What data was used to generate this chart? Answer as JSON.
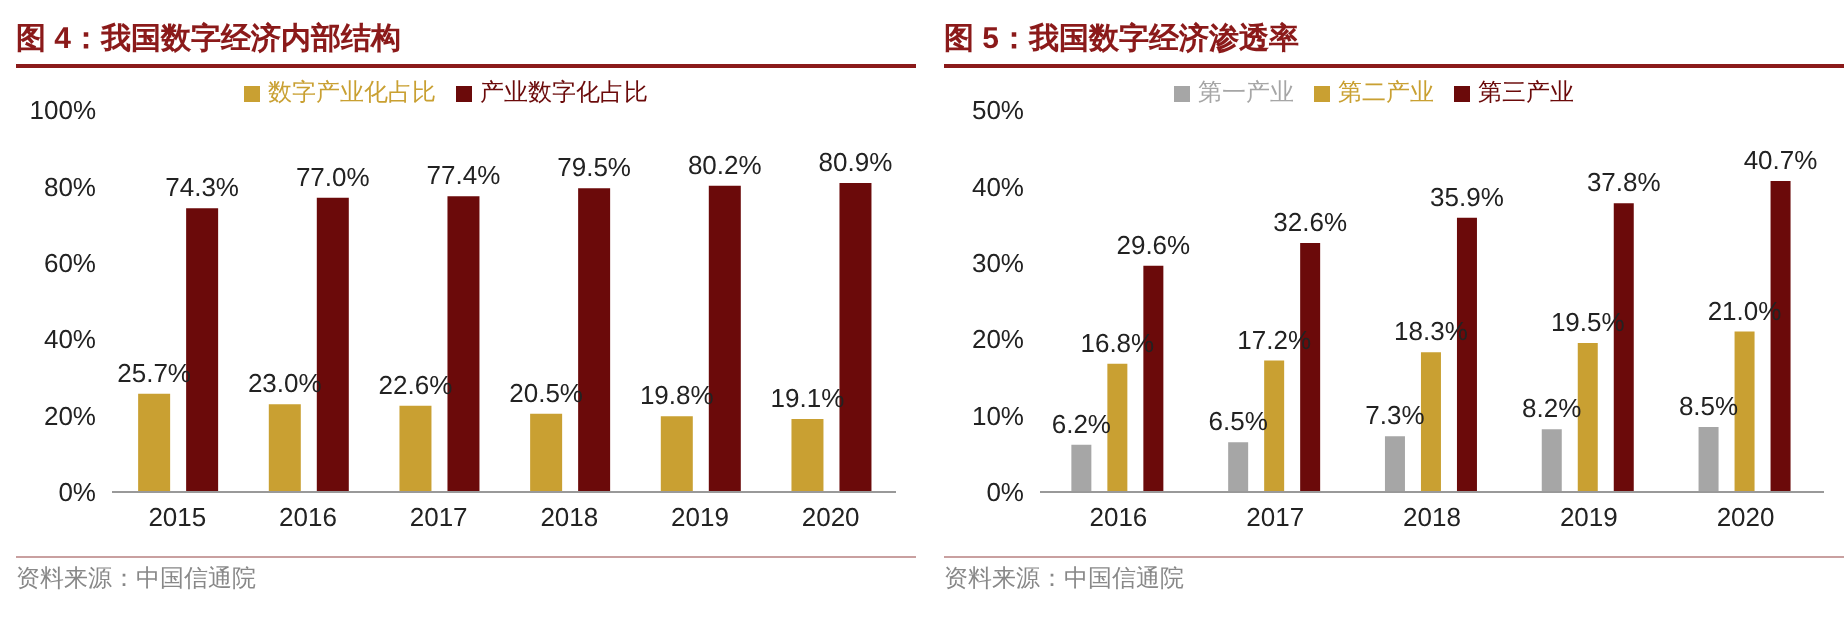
{
  "chart_data": [
    {
      "type": "bar",
      "title": "图 4：我国数字经济内部结构",
      "categories": [
        "2015",
        "2016",
        "2017",
        "2018",
        "2019",
        "2020"
      ],
      "series": [
        {
          "name": "数字产业化占比",
          "color": "#c9a032",
          "values": [
            25.7,
            23.0,
            22.6,
            20.5,
            19.8,
            19.1
          ],
          "value_labels": [
            "25.7%",
            "23.0%",
            "22.6%",
            "20.5%",
            "19.8%",
            "19.1%"
          ]
        },
        {
          "name": "产业数字化占比",
          "color": "#6b0a0a",
          "values": [
            74.3,
            77.0,
            77.4,
            79.5,
            80.2,
            80.9
          ],
          "value_labels": [
            "74.3%",
            "77.0%",
            "77.4%",
            "79.5%",
            "80.2%",
            "80.9%"
          ]
        }
      ],
      "ylim": [
        0,
        100
      ],
      "yticks": [
        {
          "value": 0,
          "label": "0%"
        },
        {
          "value": 20,
          "label": "20%"
        },
        {
          "value": 40,
          "label": "40%"
        },
        {
          "value": 60,
          "label": "60%"
        },
        {
          "value": 80,
          "label": "80%"
        },
        {
          "value": 100,
          "label": "100%"
        }
      ],
      "legend": "top",
      "grid": false,
      "annotations": [
        "资料来源：中国信通院"
      ]
    },
    {
      "type": "bar",
      "title": "图 5：我国数字经济渗透率",
      "categories": [
        "2016",
        "2017",
        "2018",
        "2019",
        "2020"
      ],
      "series": [
        {
          "name": "第一产业",
          "color": "#a6a6a6",
          "values": [
            6.2,
            6.5,
            7.3,
            8.2,
            8.5
          ],
          "value_labels": [
            "6.2%",
            "6.5%",
            "7.3%",
            "8.2%",
            "8.5%"
          ]
        },
        {
          "name": "第二产业",
          "color": "#c9a032",
          "values": [
            16.8,
            17.2,
            18.3,
            19.5,
            21.0
          ],
          "value_labels": [
            "16.8%",
            "17.2%",
            "18.3%",
            "19.5%",
            "21.0%"
          ]
        },
        {
          "name": "第三产业",
          "color": "#6b0a0a",
          "values": [
            29.6,
            32.6,
            35.9,
            37.8,
            40.7
          ],
          "value_labels": [
            "29.6%",
            "32.6%",
            "35.9%",
            "37.8%",
            "40.7%"
          ]
        }
      ],
      "ylim": [
        0,
        50
      ],
      "yticks": [
        {
          "value": 0,
          "label": "0%"
        },
        {
          "value": 10,
          "label": "10%"
        },
        {
          "value": 20,
          "label": "20%"
        },
        {
          "value": 30,
          "label": "30%"
        },
        {
          "value": 40,
          "label": "40%"
        },
        {
          "value": 50,
          "label": "50%"
        }
      ],
      "legend": "top",
      "grid": false,
      "annotations": [
        "资料来源：中国信通院"
      ]
    }
  ]
}
